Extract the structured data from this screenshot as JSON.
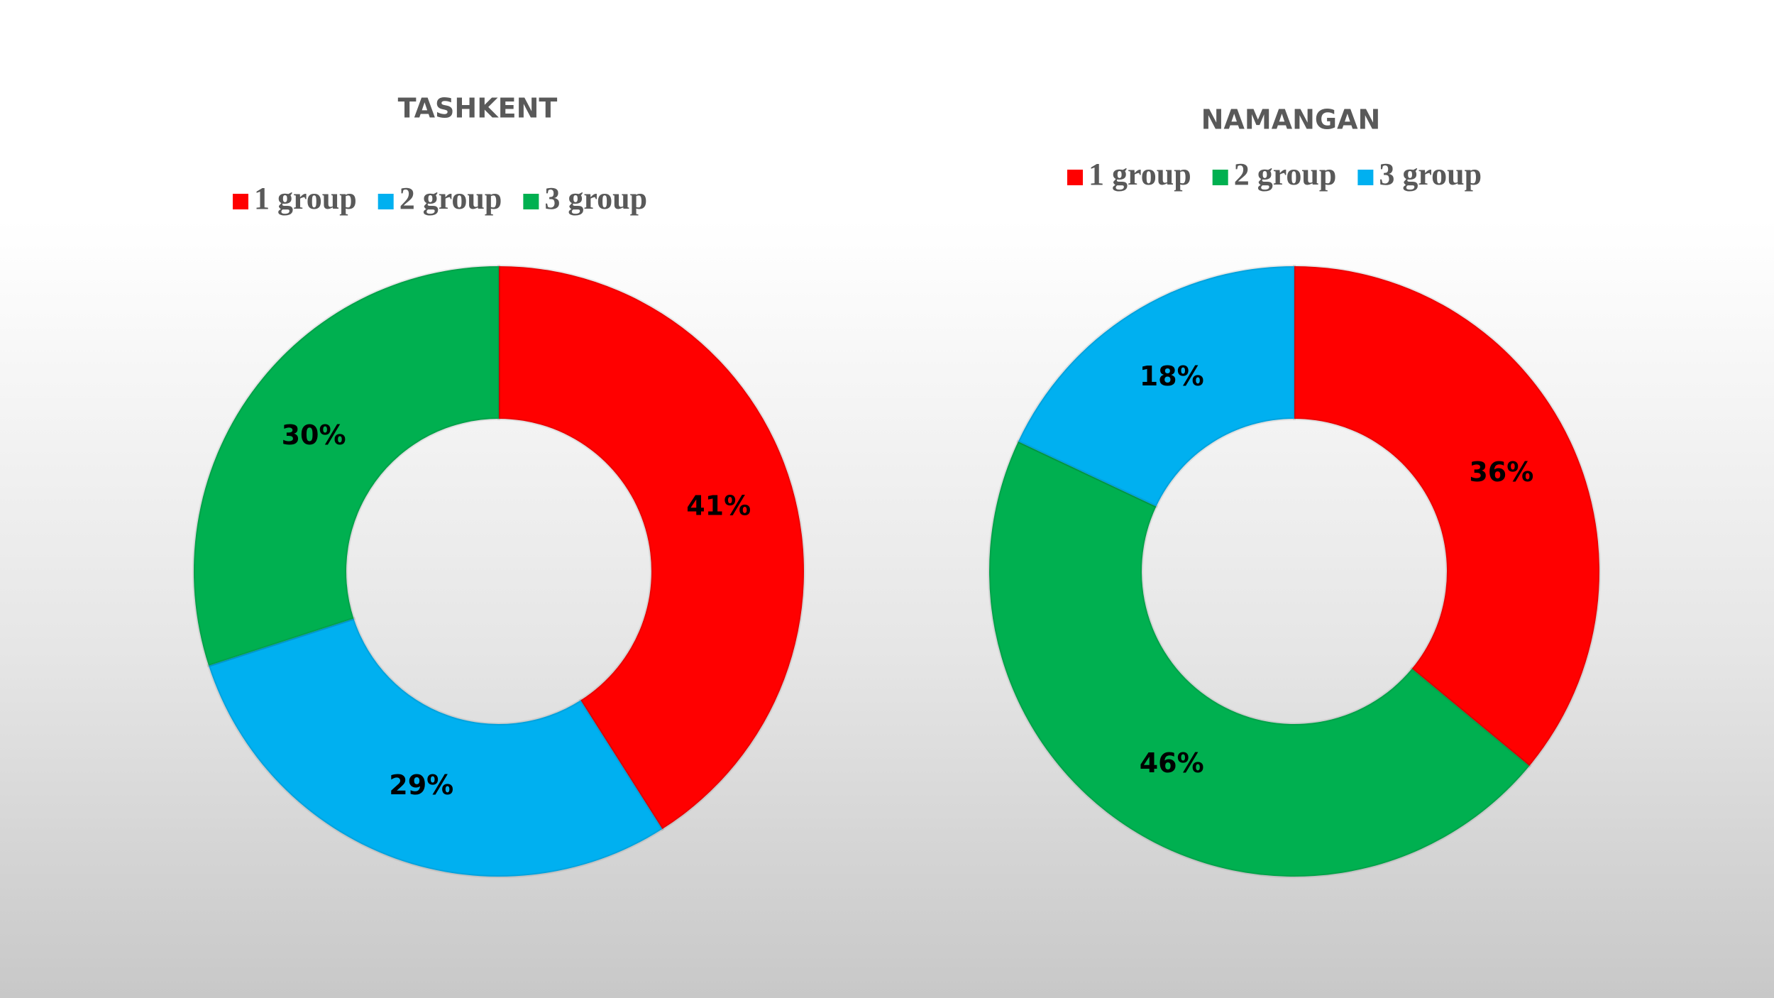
{
  "chart_data": [
    {
      "type": "donut",
      "title": "TASHKENT",
      "categories": [
        "1 group",
        "2 group",
        "3 group"
      ],
      "values": [
        41,
        29,
        30
      ],
      "value_labels": [
        "41%",
        "29%",
        "30%"
      ],
      "colors": [
        "#ff0000",
        "#00b0f0",
        "#00b050"
      ]
    },
    {
      "type": "donut",
      "title": "NAMANGAN",
      "categories": [
        "1 group",
        "2 group",
        "3 group"
      ],
      "values": [
        36,
        46,
        18
      ],
      "value_labels": [
        "36%",
        "46%",
        "18%"
      ],
      "colors": [
        "#ff0000",
        "#00b050",
        "#00b0f0"
      ]
    }
  ]
}
